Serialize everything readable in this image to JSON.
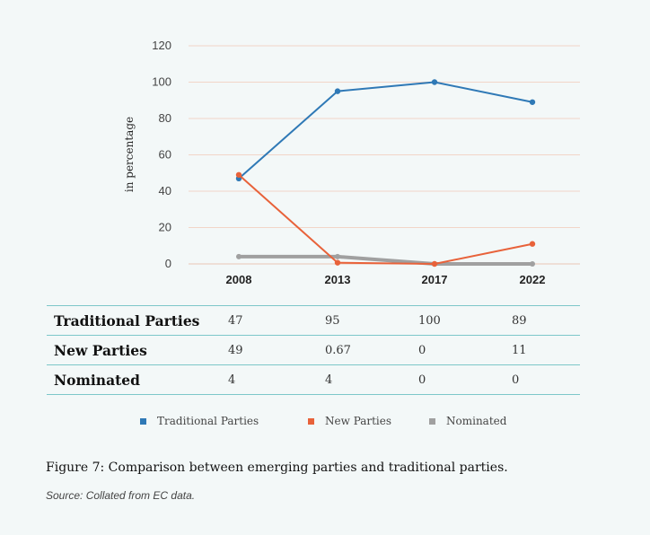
{
  "chart_data": {
    "type": "line",
    "categories": [
      "2008",
      "2013",
      "2017",
      "2022"
    ],
    "series": [
      {
        "name": "Traditional Parties",
        "values": [
          47,
          95,
          100,
          89
        ],
        "color": "#2f79b6"
      },
      {
        "name": "New Parties",
        "values": [
          49,
          0.67,
          0,
          11
        ],
        "color": "#e8623a"
      },
      {
        "name": "Nominated",
        "values": [
          4,
          4,
          0,
          0
        ],
        "color": "#a0a0a0"
      }
    ],
    "yticks": [
      0,
      20,
      40,
      60,
      80,
      100,
      120
    ],
    "ylim": [
      0,
      120
    ],
    "ylabel": "in percentage",
    "grid": true,
    "legend": "bottom",
    "table": {
      "rows": [
        {
          "label": "Traditional Parties",
          "cells": [
            "47",
            "95",
            "100",
            "89"
          ]
        },
        {
          "label": "New Parties",
          "cells": [
            "49",
            "0.67",
            "0",
            "11"
          ]
        },
        {
          "label": "Nominated",
          "cells": [
            "4",
            "4",
            "0",
            "0"
          ]
        }
      ]
    }
  },
  "caption": "Figure 7: Comparison between emerging parties and traditional parties.",
  "source": "Source: Collated from EC data."
}
